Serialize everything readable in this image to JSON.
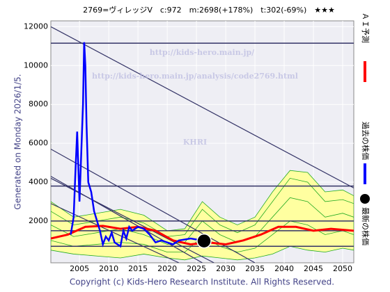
{
  "chart_data": {
    "type": "line",
    "title": "2769=ヴィレッジV　c:972　m:2698(+178%)　t:302(-69%)　★★★",
    "left_note": "Generated on Monday 2026/1/5.",
    "footer": "Copyright (c) Kids-Hero Research Institute. All Rights Reserved.",
    "watermarks": [
      "http://kids-hero.main.jp/",
      "http://kids-hero.main.jp/analysis/code2769.html",
      "KHRI"
    ],
    "xlim": [
      2000.1,
      2051.9
    ],
    "ylim": [
      -150,
      12300
    ],
    "xticks": [
      2005,
      2010,
      2015,
      2020,
      2025,
      2030,
      2035,
      2040,
      2045,
      2050
    ],
    "yticks": [
      2000,
      4000,
      6000,
      8000,
      10000,
      12000
    ],
    "grid": true,
    "band": {
      "color": "#ffffa0",
      "x": [
        2000.1,
        2004,
        2008,
        2012,
        2016,
        2020,
        2023,
        2026,
        2029,
        2032,
        2035,
        2038,
        2041,
        2044,
        2047,
        2050,
        2051.9
      ],
      "upper": [
        3000,
        2200,
        2400,
        2600,
        2300,
        1500,
        1600,
        3000,
        2200,
        1800,
        2200,
        3500,
        4600,
        4500,
        3500,
        3600,
        3300
      ],
      "lower": [
        500,
        300,
        200,
        100,
        300,
        100,
        0,
        200,
        100,
        0,
        100,
        300,
        700,
        500,
        400,
        600,
        500
      ]
    },
    "band_lines": [
      {
        "color": "#22aa22",
        "values": [
          2500,
          1800,
          2000,
          2200,
          1900,
          1200,
          1300,
          2600,
          1800,
          1400,
          1800,
          3000,
          4200,
          4000,
          3000,
          3100,
          2900
        ]
      },
      {
        "color": "#22aa22",
        "values": [
          1800,
          1200,
          1400,
          1600,
          1300,
          800,
          900,
          2000,
          1300,
          900,
          1200,
          2200,
          3200,
          3000,
          2200,
          2400,
          2200
        ]
      },
      {
        "color": "#22aa22",
        "values": [
          1000,
          700,
          800,
          900,
          800,
          400,
          400,
          1200,
          700,
          400,
          600,
          1300,
          2000,
          1800,
          1300,
          1500,
          1300
        ]
      }
    ],
    "hlines": {
      "color": "#333366",
      "values": [
        11150,
        3800,
        2000,
        1500,
        700
      ]
    },
    "trend_lines": {
      "color": "#333366",
      "lines": [
        {
          "from": [
            2000.1,
            12000
          ],
          "to": [
            2051.9,
            3700
          ]
        },
        {
          "from": [
            2000.1,
            5700
          ],
          "to": [
            2035,
            -150
          ]
        },
        {
          "from": [
            2000.1,
            4300
          ],
          "to": [
            2026,
            -150
          ]
        },
        {
          "from": [
            2000.1,
            4200
          ],
          "to": [
            2028,
            -150
          ]
        },
        {
          "from": [
            2000.1,
            2900
          ],
          "to": [
            2022,
            -150
          ]
        }
      ]
    },
    "series": [
      {
        "name": "ＡＩ予測",
        "color": "#ff0000",
        "x": [
          2000.1,
          2003,
          2006,
          2009,
          2012,
          2015,
          2018,
          2021,
          2024,
          2027,
          2030,
          2033,
          2036,
          2039,
          2042,
          2045,
          2048,
          2051.9
        ],
        "values": [
          1100,
          1300,
          1700,
          1750,
          1600,
          1700,
          1500,
          1000,
          800,
          900,
          800,
          1000,
          1300,
          1700,
          1700,
          1500,
          1600,
          1500
        ]
      },
      {
        "name": "過去の株価",
        "color": "#0000ff",
        "x": [
          2003.5,
          2004,
          2004.3,
          2004.6,
          2005,
          2005.3,
          2005.6,
          2005.8,
          2006,
          2006.2,
          2006.5,
          2007,
          2007.5,
          2008,
          2008.5,
          2009,
          2009.5,
          2010,
          2010.5,
          2011,
          2012,
          2012.5,
          2013,
          2013.5,
          2014,
          2015,
          2016,
          2017,
          2018,
          2019,
          2020,
          2021,
          2022,
          2023,
          2024,
          2025,
          2025.5
        ],
        "values": [
          1300,
          2200,
          4500,
          6600,
          3000,
          5500,
          8000,
          11200,
          10000,
          7000,
          4000,
          3500,
          2500,
          2000,
          1500,
          800,
          1200,
          1000,
          1400,
          900,
          700,
          1500,
          1100,
          1700,
          1500,
          1700,
          1600,
          1300,
          900,
          1000,
          900,
          800,
          1000,
          1050,
          1100,
          1050,
          1000
        ]
      }
    ],
    "latest": {
      "name": "最新の株価",
      "color": "#000000",
      "x": 2026.3,
      "value": 972
    }
  }
}
